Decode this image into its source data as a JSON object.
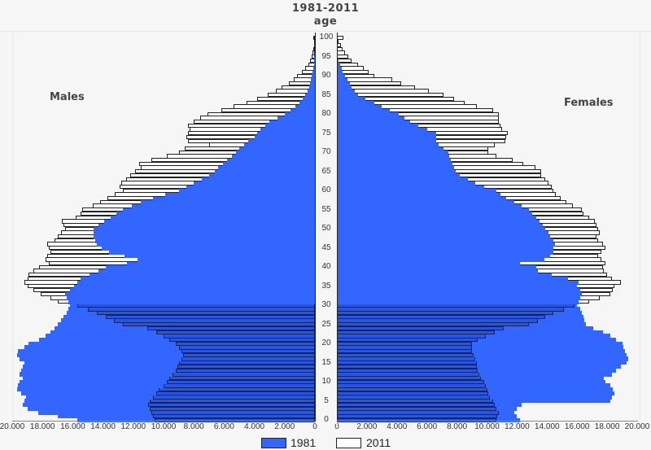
{
  "header": {
    "title": "1981-2011",
    "subtitle": "age"
  },
  "labels": {
    "males": "Males",
    "females": "Females"
  },
  "legend": [
    {
      "label": "1981",
      "color": "#3366ff"
    },
    {
      "label": "2011",
      "color": "#ffffff"
    }
  ],
  "x_ticks_left": [
    "20.000",
    "18.000",
    "16.000",
    "14.000",
    "12.000",
    "10.000",
    "8.000",
    "6.000",
    "4.000",
    "2.000",
    "0"
  ],
  "x_ticks_right": [
    "0",
    "2.000",
    "4.000",
    "6.000",
    "8.000",
    "10.000",
    "12.000",
    "14.000",
    "16.000",
    "18.000",
    "20.000"
  ],
  "age_ticks": [
    "0",
    "5",
    "10",
    "15",
    "20",
    "25",
    "30",
    "35",
    "40",
    "45",
    "50",
    "55",
    "60",
    "65",
    "70",
    "75",
    "80",
    "85",
    "90",
    "95",
    "100"
  ],
  "chart_data": {
    "type": "bar",
    "subtype": "population-pyramid",
    "title": "1981-2011",
    "ylabel": "age",
    "xlabel": "",
    "xlim": [
      0,
      20000
    ],
    "ylim": [
      0,
      100
    ],
    "legend_position": "bottom",
    "grid": false,
    "categories": [
      0,
      1,
      2,
      3,
      4,
      5,
      6,
      7,
      8,
      9,
      10,
      11,
      12,
      13,
      14,
      15,
      16,
      17,
      18,
      19,
      20,
      21,
      22,
      23,
      24,
      25,
      26,
      27,
      28,
      29,
      30,
      31,
      32,
      33,
      34,
      35,
      36,
      37,
      38,
      39,
      40,
      41,
      42,
      43,
      44,
      45,
      46,
      47,
      48,
      49,
      50,
      51,
      52,
      53,
      54,
      55,
      56,
      57,
      58,
      59,
      60,
      61,
      62,
      63,
      64,
      65,
      66,
      67,
      68,
      69,
      70,
      71,
      72,
      73,
      74,
      75,
      76,
      77,
      78,
      79,
      80,
      81,
      82,
      83,
      84,
      85,
      86,
      87,
      88,
      89,
      90,
      91,
      92,
      93,
      94,
      95,
      96,
      97,
      98,
      99,
      100
    ],
    "series": [
      {
        "name": "Males 1981",
        "values": [
          15700,
          17000,
          18300,
          19000,
          19300,
          19200,
          19100,
          19400,
          19700,
          19600,
          19500,
          19300,
          19500,
          19400,
          19300,
          19200,
          19500,
          19700,
          19600,
          19200,
          18900,
          18200,
          17800,
          17500,
          17200,
          17000,
          16800,
          16600,
          16400,
          16300,
          16200,
          16300,
          16400,
          16500,
          16200,
          15900,
          15700,
          15500,
          14900,
          14300,
          13800,
          12400,
          11700,
          12600,
          13600,
          14100,
          14400,
          14500,
          14600,
          14600,
          14600,
          14300,
          13900,
          13500,
          13100,
          12700,
          12100,
          11500,
          10700,
          9900,
          9000,
          8500,
          8000,
          7500,
          7000,
          6600,
          6400,
          6100,
          5800,
          5500,
          5200,
          5000,
          4700,
          4400,
          4000,
          3800,
          3600,
          3300,
          3000,
          2500,
          2000,
          1600,
          1300,
          1000,
          800,
          650,
          500,
          400,
          330,
          260,
          200,
          150,
          110,
          80,
          60,
          40,
          25,
          15,
          10,
          5,
          0
        ]
      },
      {
        "name": "Males 2011",
        "values": [
          10600,
          10700,
          10800,
          10900,
          11000,
          10900,
          10700,
          10500,
          10300,
          10000,
          9800,
          9600,
          9400,
          9200,
          9100,
          9000,
          8800,
          8700,
          8800,
          9000,
          9200,
          9600,
          10000,
          10500,
          11100,
          12700,
          13300,
          13800,
          14400,
          15000,
          15700,
          17000,
          17500,
          18100,
          18600,
          19000,
          19200,
          19000,
          18900,
          18600,
          18200,
          17600,
          17800,
          17700,
          17500,
          17600,
          17700,
          17200,
          17000,
          16800,
          16500,
          16600,
          16700,
          15800,
          15500,
          15400,
          14700,
          14200,
          13700,
          13200,
          12700,
          12900,
          12800,
          12500,
          12200,
          11900,
          11500,
          11600,
          10800,
          9800,
          9000,
          8600,
          7000,
          8400,
          8500,
          8400,
          8300,
          8400,
          8000,
          7600,
          7100,
          6200,
          5400,
          4500,
          3800,
          3100,
          2600,
          2200,
          1700,
          1400,
          1200,
          850,
          650,
          450,
          330,
          200,
          150,
          100,
          70,
          50,
          100
        ]
      },
      {
        "name": "Females 1981",
        "values": [
          12200,
          12000,
          11800,
          12000,
          12300,
          18200,
          18300,
          18500,
          18400,
          18200,
          17900,
          17800,
          18300,
          18600,
          18900,
          19300,
          19400,
          19300,
          19200,
          19100,
          19000,
          18600,
          18200,
          17700,
          17100,
          16600,
          16500,
          16400,
          16300,
          16200,
          16000,
          16100,
          16200,
          16300,
          16200,
          16000,
          16100,
          15400,
          14300,
          13400,
          13300,
          12200,
          13800,
          14200,
          14400,
          14400,
          14500,
          14400,
          14200,
          14100,
          13900,
          13700,
          13500,
          13300,
          13000,
          12800,
          12300,
          11800,
          11300,
          10900,
          10600,
          9800,
          9200,
          8700,
          8200,
          7900,
          7800,
          7700,
          7600,
          7500,
          7400,
          7100,
          6800,
          6600,
          6600,
          6600,
          6000,
          5400,
          4900,
          4500,
          4100,
          3500,
          3000,
          2500,
          1900,
          1400,
          1200,
          1000,
          850,
          700,
          550,
          400,
          300,
          200,
          100,
          60,
          40,
          20,
          10,
          5,
          0
        ]
      },
      {
        "name": "Females 2011",
        "values": [
          10600,
          10700,
          10800,
          10600,
          10500,
          10400,
          10200,
          10100,
          10000,
          9900,
          9800,
          9600,
          9500,
          9400,
          9300,
          9300,
          9200,
          9100,
          9000,
          9000,
          9000,
          9400,
          9900,
          10500,
          11100,
          12800,
          13400,
          13900,
          14400,
          15100,
          15800,
          16800,
          17500,
          18200,
          18400,
          18500,
          18900,
          18300,
          18000,
          17800,
          17700,
          17900,
          17600,
          17400,
          17600,
          17900,
          17700,
          17400,
          17300,
          17500,
          17400,
          17300,
          17200,
          16800,
          16400,
          16300,
          15700,
          15300,
          14900,
          14600,
          14400,
          14300,
          14100,
          13900,
          13600,
          13600,
          13200,
          12400,
          11700,
          10600,
          10100,
          10100,
          10500,
          11200,
          11300,
          11400,
          11000,
          10900,
          10800,
          10800,
          10800,
          10400,
          9300,
          8500,
          7800,
          7100,
          6100,
          5200,
          4300,
          3700,
          2500,
          2100,
          1800,
          1400,
          1000,
          750,
          550,
          400,
          250,
          130,
          450
        ]
      }
    ]
  }
}
